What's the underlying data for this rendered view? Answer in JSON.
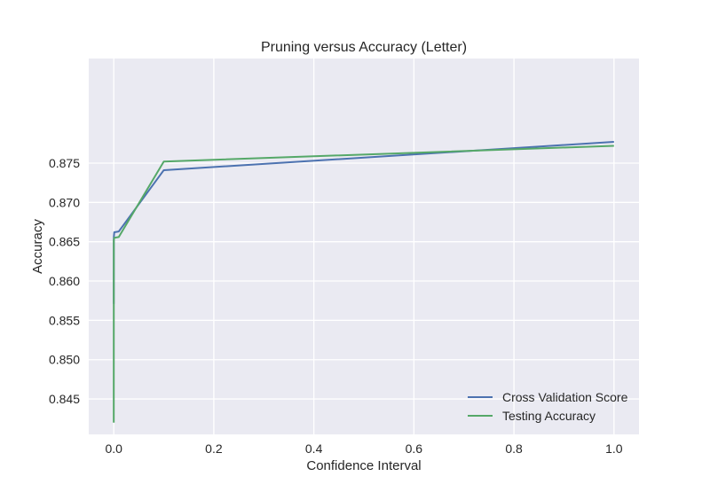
{
  "chart_data": {
    "type": "line",
    "title": "Pruning versus Accuracy (Letter)",
    "xlabel": "Confidence Interval",
    "ylabel": "Accuracy",
    "xlim": [
      -0.05,
      1.05
    ],
    "ylim": [
      0.8405,
      0.8883
    ],
    "xticks": [
      0.0,
      0.2,
      0.4,
      0.6,
      0.8,
      1.0
    ],
    "xtick_labels": [
      "0.0",
      "0.2",
      "0.4",
      "0.6",
      "0.8",
      "1.0"
    ],
    "yticks": [
      0.845,
      0.85,
      0.855,
      0.86,
      0.865,
      0.87,
      0.875
    ],
    "ytick_labels": [
      "0.845",
      "0.850",
      "0.855",
      "0.860",
      "0.865",
      "0.870",
      "0.875"
    ],
    "grid": true,
    "legend_position": "lower-right",
    "series": [
      {
        "name": "Cross Validation Score",
        "color": "#4c72b0",
        "x": [
          0.0,
          0.0001,
          0.001,
          0.01,
          0.1,
          1.0
        ],
        "y": [
          0.8571,
          0.8655,
          0.8662,
          0.8663,
          0.8741,
          0.8777
        ]
      },
      {
        "name": "Testing Accuracy",
        "color": "#55a868",
        "x": [
          0.0,
          0.0001,
          0.001,
          0.01,
          0.1,
          1.0
        ],
        "y": [
          0.842,
          0.8652,
          0.8655,
          0.8656,
          0.8752,
          0.8772
        ]
      }
    ]
  }
}
